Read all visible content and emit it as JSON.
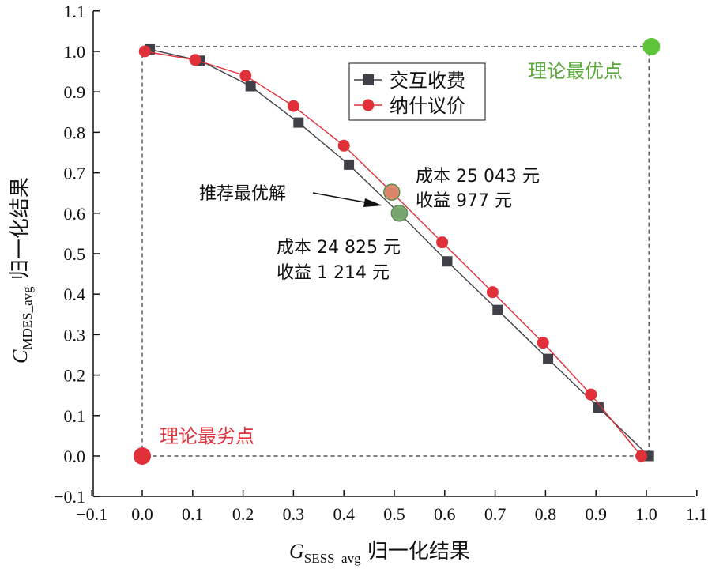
{
  "chart_data": {
    "type": "line",
    "xlabel": {
      "symbol": "G",
      "subscript": "SESS_avg",
      "suffix": " 归一化结果"
    },
    "ylabel": {
      "symbol": "C",
      "subscript": "MDES_avg",
      "suffix": " 归一化结果"
    },
    "xlim": [
      -0.1,
      1.1
    ],
    "ylim": [
      -0.1,
      1.1
    ],
    "xticks": [
      "−0.1",
      "0.0",
      "0.1",
      "0.2",
      "0.3",
      "0.4",
      "0.5",
      "0.6",
      "0.7",
      "0.8",
      "0.9",
      "1.0",
      "1.1"
    ],
    "yticks": [
      "−0.1",
      "0.0",
      "0.1",
      "0.2",
      "0.3",
      "0.4",
      "0.5",
      "0.6",
      "0.7",
      "0.8",
      "0.9",
      "1.0",
      "1.1"
    ],
    "series": [
      {
        "name": "交互收费",
        "color": "#404048",
        "marker": "square",
        "x": [
          0.015,
          0.115,
          0.215,
          0.31,
          0.41,
          0.51,
          0.605,
          0.705,
          0.805,
          0.905,
          1.005
        ],
        "y": [
          1.005,
          0.977,
          0.914,
          0.824,
          0.72,
          0.6,
          0.481,
          0.361,
          0.24,
          0.12,
          0.0
        ]
      },
      {
        "name": "纳什议价",
        "color": "#e0303a",
        "marker": "circle",
        "x": [
          0.005,
          0.105,
          0.205,
          0.3,
          0.4,
          0.495,
          0.595,
          0.695,
          0.795,
          0.89,
          0.99
        ],
        "y": [
          1.0,
          0.979,
          0.94,
          0.865,
          0.767,
          0.652,
          0.528,
          0.405,
          0.28,
          0.152,
          0.0
        ]
      }
    ],
    "points": [
      {
        "name": "理论最优点",
        "x": 1.01,
        "y": 1.012,
        "color": "#5ec43a"
      },
      {
        "name": "理论最劣点",
        "x": 0.0,
        "y": 0.0,
        "color": "#e0303a"
      }
    ],
    "recommended": [
      {
        "x": 0.495,
        "y": 0.652,
        "color": "#d98a6a"
      },
      {
        "x": 0.51,
        "y": 0.6,
        "color": "#7aaa70"
      }
    ],
    "annotations": {
      "optimal_label": "理论最优点",
      "worst_label": "理论最劣点",
      "recommend_label": "推荐最优解",
      "nash_cost": "成本 25 043 元",
      "nash_revenue": "收益 977 元",
      "interactive_cost": "成本 24 825 元",
      "interactive_revenue": "收益 1 214 元"
    },
    "legend_position": "top-right",
    "colors": {
      "optimal": "#5ec43a",
      "worst": "#e0303a"
    }
  }
}
